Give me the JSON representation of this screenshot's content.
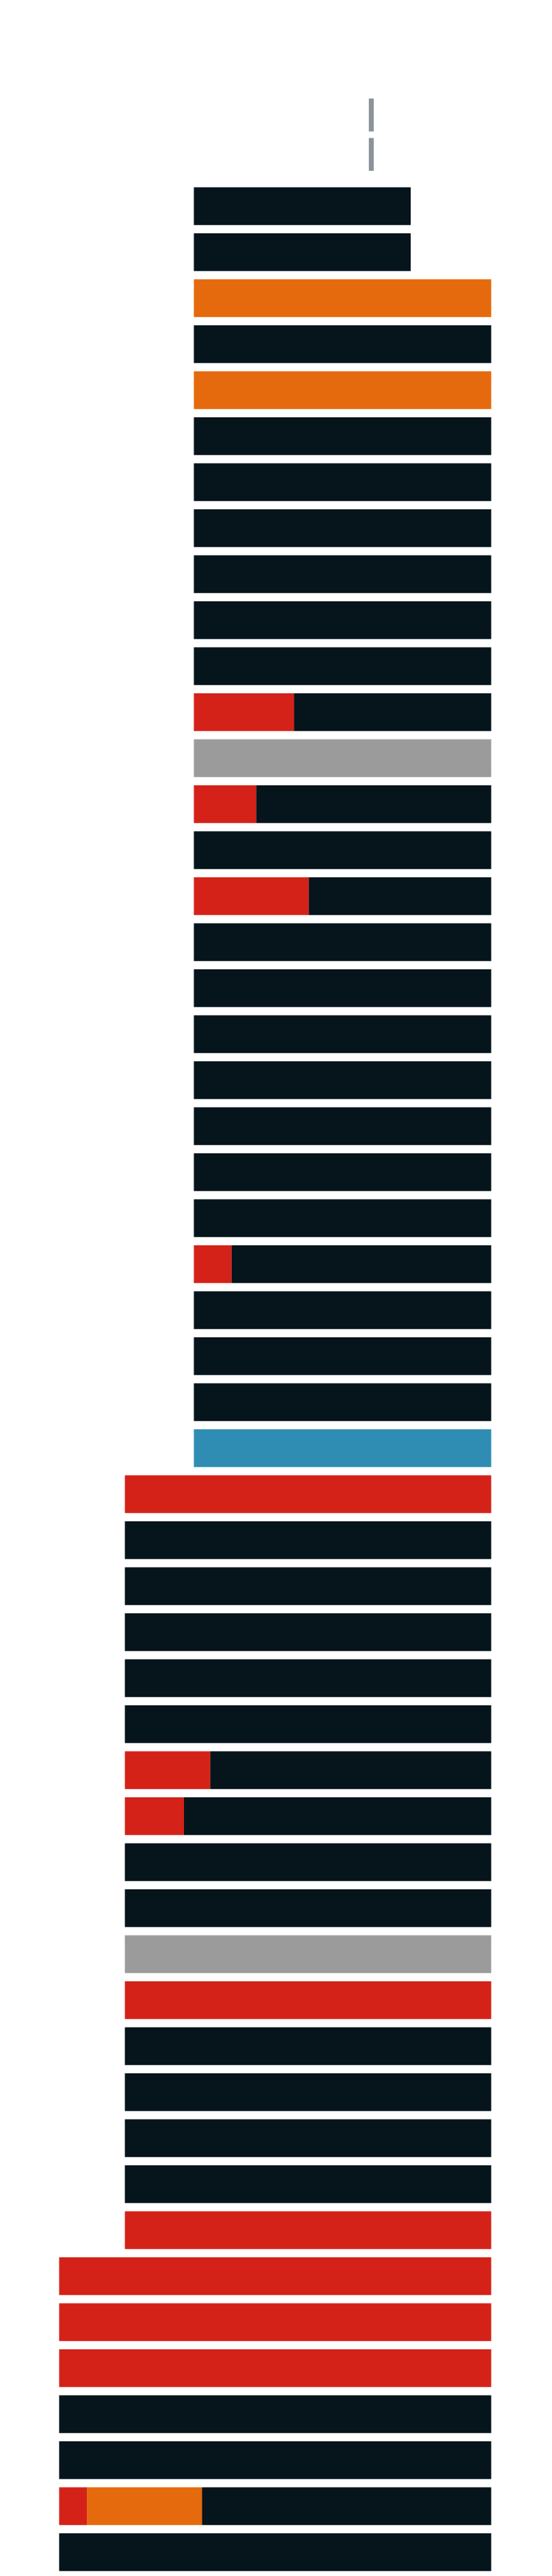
{
  "palette": {
    "floor": "#06141b",
    "orange": "#e5690d",
    "red": "#d42219",
    "gray": "#9b9b9b",
    "blue": "#2f8db3",
    "antenna": "#8a929a"
  }
}
